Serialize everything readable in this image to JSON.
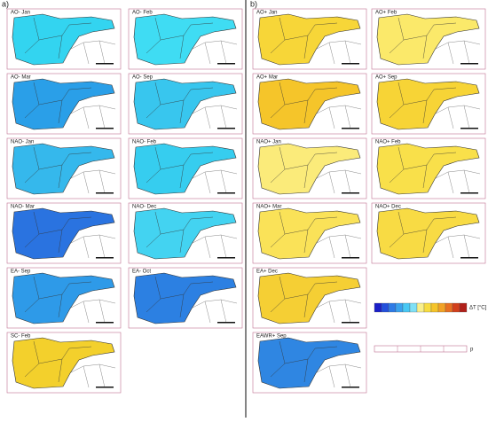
{
  "figure": {
    "left_label": "a)",
    "right_label": "b)",
    "left_panels": [
      {
        "title": "AO- Jan",
        "color": "#33d4f0"
      },
      {
        "title": "AO- Feb",
        "color": "#3fdcf3"
      },
      {
        "title": "AO- Mar",
        "color": "#2a9fe8"
      },
      {
        "title": "AO- Sep",
        "color": "#38c6ee"
      },
      {
        "title": "NAO- Jan",
        "color": "#35b8ec"
      },
      {
        "title": "NAO- Feb",
        "color": "#36cdef"
      },
      {
        "title": "NAO- Mar",
        "color": "#2a73e0"
      },
      {
        "title": "NAO- Dec",
        "color": "#43d3f1"
      },
      {
        "title": "EA- Sep",
        "color": "#2e9ae8"
      },
      {
        "title": "EA- Oct",
        "color": "#2c80e2"
      },
      {
        "title": "SC- Feb",
        "color": "#f3d02c"
      }
    ],
    "right_panels": [
      {
        "title": "AO+ Jan",
        "color": "#f7d638"
      },
      {
        "title": "AO+ Feb",
        "color": "#fbe96a"
      },
      {
        "title": "AO+ Mar",
        "color": "#f5c52a"
      },
      {
        "title": "AO+ Sep",
        "color": "#f7d436"
      },
      {
        "title": "NAO+ Jan",
        "color": "#fbeb7a"
      },
      {
        "title": "NAO+ Feb",
        "color": "#f9e04a"
      },
      {
        "title": "NAO+ Mar",
        "color": "#fae258"
      },
      {
        "title": "NAO+ Dec",
        "color": "#f8db44"
      },
      {
        "title": "EA+ Dec",
        "color": "#f5cf34"
      },
      {
        "title": "EAWR+ Sep",
        "color": "#2f86e2"
      }
    ],
    "colorbar": {
      "label": "ΔT [°C]",
      "colors": [
        "#1a1fc8",
        "#2350dc",
        "#2e7be6",
        "#3aa2ee",
        "#48c8f4",
        "#7fe0f6",
        "#f9ef8a",
        "#f7dc40",
        "#f5c42a",
        "#f2a226",
        "#e87022",
        "#d2401c",
        "#b0201a"
      ]
    },
    "pbar_label": "p"
  }
}
